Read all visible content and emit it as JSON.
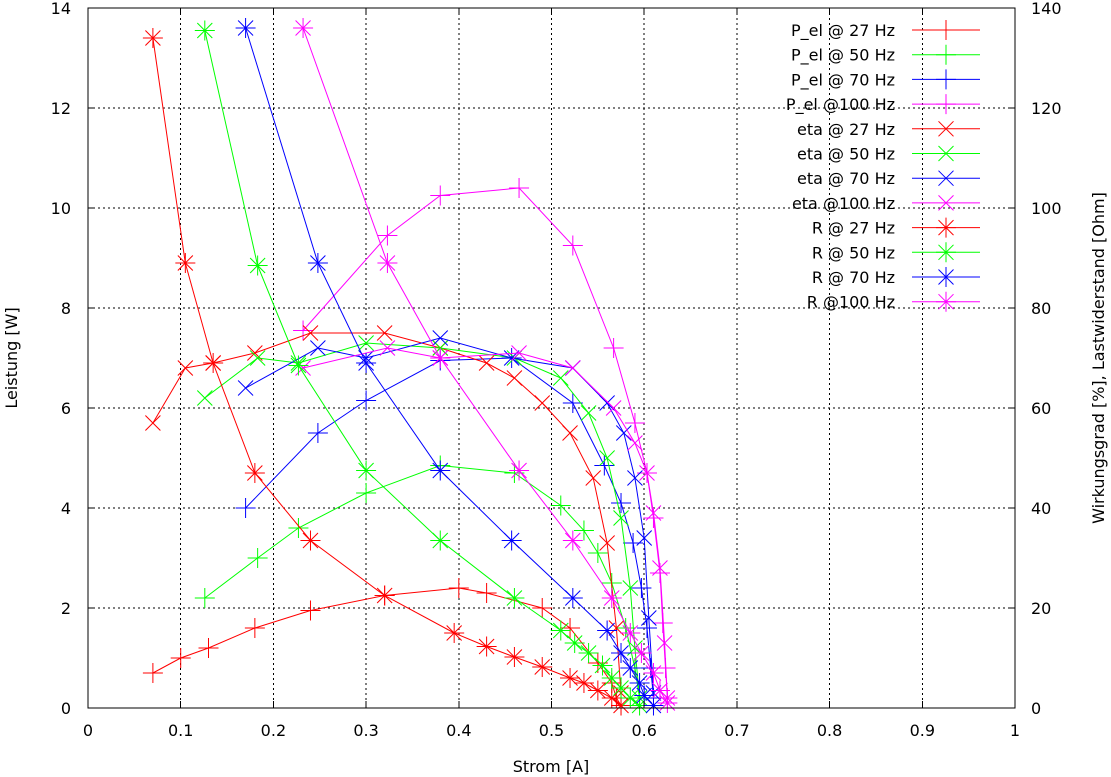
{
  "chart_data": {
    "type": "line",
    "xlabel": "Strom [A]",
    "ylabel": "Leistung [W]",
    "y2label": "Wirkungsgrad [%], Lastwiderstand [Ohm]",
    "xlim": [
      0,
      1
    ],
    "ylim": [
      0,
      14
    ],
    "y2lim": [
      0,
      140
    ],
    "grid": true,
    "legend_position": "top-right",
    "x_ticks": [
      "0",
      "0.1",
      "0.2",
      "0.3",
      "0.4",
      "0.5",
      "0.6",
      "0.7",
      "0.8",
      "0.9",
      "1"
    ],
    "y_ticks": [
      "0",
      "2",
      "4",
      "6",
      "8",
      "10",
      "12",
      "14"
    ],
    "y2_ticks": [
      "0",
      "20",
      "40",
      "60",
      "80",
      "100",
      "120",
      "140"
    ],
    "colors": {
      "27": "#ff0000",
      "50": "#00ff00",
      "70": "#0000ff",
      "100": "#ff00ff"
    },
    "series": [
      {
        "name": "P_el @ 27 Hz",
        "axis": "y1",
        "marker": "plus",
        "color": "#ff0000",
        "x": [
          0.07,
          0.1,
          0.13,
          0.18,
          0.24,
          0.32,
          0.4,
          0.43,
          0.49,
          0.52,
          0.55,
          0.565,
          0.57,
          0.575
        ],
        "y": [
          0.7,
          1.0,
          1.2,
          1.6,
          1.95,
          2.25,
          2.4,
          2.3,
          2.0,
          1.6,
          0.9,
          0.5,
          0.2,
          0.05
        ]
      },
      {
        "name": "P_el @ 50 Hz",
        "axis": "y1",
        "marker": "plus",
        "color": "#00ff00",
        "x": [
          0.126,
          0.183,
          0.227,
          0.3,
          0.38,
          0.46,
          0.51,
          0.535,
          0.55,
          0.565,
          0.58,
          0.59,
          0.595
        ],
        "y": [
          2.2,
          3.0,
          3.6,
          4.3,
          4.85,
          4.7,
          4.05,
          3.55,
          3.1,
          2.5,
          1.6,
          0.8,
          0.2
        ]
      },
      {
        "name": "P_el @ 70 Hz",
        "axis": "y1",
        "marker": "plus",
        "color": "#0000ff",
        "x": [
          0.17,
          0.248,
          0.3,
          0.38,
          0.457,
          0.523,
          0.557,
          0.575,
          0.588,
          0.597,
          0.603,
          0.607,
          0.61
        ],
        "y": [
          4.0,
          5.5,
          6.15,
          6.95,
          7.0,
          6.1,
          4.85,
          4.1,
          3.3,
          2.4,
          1.6,
          0.8,
          0.2
        ]
      },
      {
        "name": "P_el @100 Hz",
        "axis": "y1",
        "marker": "plus",
        "color": "#ff00ff",
        "x": [
          0.232,
          0.323,
          0.38,
          0.465,
          0.523,
          0.567,
          0.59,
          0.603,
          0.61,
          0.617,
          0.62,
          0.623,
          0.625
        ],
        "y": [
          7.55,
          9.45,
          10.25,
          10.4,
          9.25,
          7.2,
          5.7,
          4.7,
          3.8,
          2.7,
          1.7,
          0.8,
          0.2
        ]
      },
      {
        "name": "eta @ 27 Hz",
        "axis": "y2",
        "marker": "x",
        "color": "#ff0000",
        "x": [
          0.07,
          0.105,
          0.135,
          0.18,
          0.24,
          0.32,
          0.38,
          0.43,
          0.46,
          0.49,
          0.52,
          0.545,
          0.56,
          0.57,
          0.575
        ],
        "y": [
          57,
          68,
          69,
          71,
          75,
          75,
          72,
          69,
          66,
          61,
          55,
          46,
          33,
          16,
          3
        ]
      },
      {
        "name": "eta @ 50 Hz",
        "axis": "y2",
        "marker": "x",
        "color": "#00ff00",
        "x": [
          0.126,
          0.183,
          0.227,
          0.3,
          0.38,
          0.46,
          0.51,
          0.54,
          0.56,
          0.575,
          0.585,
          0.59,
          0.595
        ],
        "y": [
          62,
          70,
          69,
          73,
          72,
          70,
          66,
          59,
          50,
          38,
          24,
          12,
          2
        ]
      },
      {
        "name": "eta @ 70 Hz",
        "axis": "y2",
        "marker": "x",
        "color": "#0000ff",
        "x": [
          0.17,
          0.248,
          0.3,
          0.38,
          0.457,
          0.523,
          0.56,
          0.578,
          0.59,
          0.6,
          0.605,
          0.61
        ],
        "y": [
          64,
          72,
          70,
          74,
          70,
          68,
          61,
          55,
          46,
          34,
          18,
          3
        ]
      },
      {
        "name": "eta @100 Hz",
        "axis": "y2",
        "marker": "x",
        "color": "#ff00ff",
        "x": [
          0.232,
          0.323,
          0.38,
          0.465,
          0.523,
          0.567,
          0.59,
          0.603,
          0.61,
          0.617,
          0.622,
          0.625
        ],
        "y": [
          68,
          72,
          70,
          71,
          68,
          60,
          53,
          47,
          39,
          28,
          13,
          2
        ]
      },
      {
        "name": "R @ 27 Hz",
        "axis": "y2",
        "marker": "star",
        "color": "#ff0000",
        "x": [
          0.07,
          0.105,
          0.135,
          0.18,
          0.24,
          0.32,
          0.395,
          0.43,
          0.46,
          0.49,
          0.52,
          0.535,
          0.55,
          0.565,
          0.575
        ],
        "y": [
          134,
          89,
          69,
          47,
          33.5,
          22.5,
          15,
          12.3,
          10.2,
          8.2,
          6.0,
          5.0,
          3.5,
          2.0,
          0.5
        ]
      },
      {
        "name": "R @ 50 Hz",
        "axis": "y2",
        "marker": "star",
        "color": "#00ff00",
        "x": [
          0.126,
          0.183,
          0.227,
          0.3,
          0.38,
          0.46,
          0.51,
          0.525,
          0.54,
          0.555,
          0.565,
          0.575,
          0.585,
          0.595
        ],
        "y": [
          135.5,
          88.5,
          68.5,
          47.5,
          33.5,
          22,
          15.5,
          13,
          11,
          8.5,
          6,
          4,
          2,
          0.5
        ]
      },
      {
        "name": "R @ 70 Hz",
        "axis": "y2",
        "marker": "star",
        "color": "#0000ff",
        "x": [
          0.17,
          0.248,
          0.3,
          0.38,
          0.457,
          0.523,
          0.56,
          0.575,
          0.585,
          0.595,
          0.6,
          0.61
        ],
        "y": [
          136,
          89,
          69,
          47.5,
          33.5,
          22,
          15.5,
          11,
          8,
          5,
          2.5,
          0.5
        ]
      },
      {
        "name": "R @100 Hz",
        "axis": "y2",
        "marker": "star",
        "color": "#ff00ff",
        "x": [
          0.232,
          0.323,
          0.38,
          0.465,
          0.523,
          0.565,
          0.585,
          0.597,
          0.61,
          0.617,
          0.625
        ],
        "y": [
          136,
          89,
          70,
          47.5,
          33.5,
          22,
          15,
          11,
          7,
          3.5,
          1
        ]
      }
    ]
  }
}
